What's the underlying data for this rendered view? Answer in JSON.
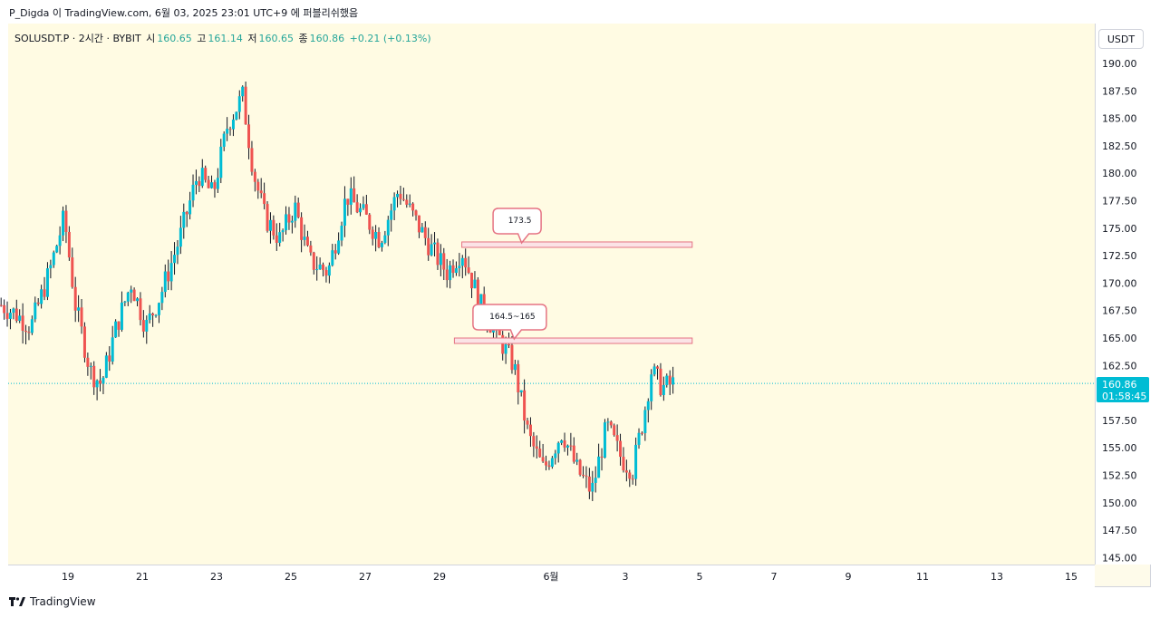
{
  "header": {
    "attribution": "P_Digda 이 TradingView.com, 6월 03, 2025 23:01 UTC+9 에 퍼블리쉬했음"
  },
  "legend": {
    "symbol": "SOLUSDT.P · 2시간 · BYBIT",
    "open_label": "시",
    "open": "160.65",
    "high_label": "고",
    "high": "161.14",
    "low_label": "저",
    "low": "160.65",
    "close_label": "종",
    "close": "160.86",
    "change": "+0.21 (+0.13%)"
  },
  "price_scale": {
    "currency": "USDT",
    "current_price": "160.86",
    "countdown": "01:58:45"
  },
  "footer": {
    "brand": "TradingView"
  },
  "colors": {
    "up": "#26a69a",
    "up_candle": "#00bcd4",
    "down": "#ef5350",
    "zone": "#e57383",
    "background": "#fffbe3"
  },
  "chart_data": {
    "type": "candlestick",
    "title": "SOLUSDT.P · 2시간 · BYBIT",
    "ylabel": "USDT",
    "ylim": [
      144,
      192
    ],
    "y_ticks": [
      "190.00",
      "187.50",
      "185.00",
      "182.50",
      "180.00",
      "177.50",
      "175.00",
      "172.50",
      "170.00",
      "167.50",
      "165.00",
      "162.50",
      "157.50",
      "155.00",
      "152.50",
      "150.00",
      "147.50",
      "145.00"
    ],
    "x_ticks": [
      "19",
      "21",
      "23",
      "25",
      "27",
      "29",
      "6월",
      "3",
      "5",
      "7",
      "9",
      "11",
      "13",
      "15"
    ],
    "x_tick_days": [
      19,
      21,
      23,
      25,
      27,
      29,
      32,
      34,
      36,
      38,
      40,
      42,
      44,
      46
    ],
    "x_range_days": [
      17.2,
      46.4
    ],
    "current_price": 160.86,
    "close_path": [
      {
        "day": 17.2,
        "price": 168.0
      },
      {
        "day": 17.6,
        "price": 167.2
      },
      {
        "day": 18.0,
        "price": 166.0
      },
      {
        "day": 18.5,
        "price": 171.0
      },
      {
        "day": 18.9,
        "price": 176.0
      },
      {
        "day": 19.2,
        "price": 168.0
      },
      {
        "day": 19.6,
        "price": 162.0
      },
      {
        "day": 19.9,
        "price": 160.8
      },
      {
        "day": 20.3,
        "price": 166.0
      },
      {
        "day": 20.7,
        "price": 170.0
      },
      {
        "day": 21.1,
        "price": 166.0
      },
      {
        "day": 21.5,
        "price": 169.0
      },
      {
        "day": 22.0,
        "price": 174.0
      },
      {
        "day": 22.5,
        "price": 180.0
      },
      {
        "day": 22.9,
        "price": 178.0
      },
      {
        "day": 23.3,
        "price": 184.5
      },
      {
        "day": 23.7,
        "price": 187.0
      },
      {
        "day": 24.0,
        "price": 180.0
      },
      {
        "day": 24.3,
        "price": 176.0
      },
      {
        "day": 24.7,
        "price": 174.0
      },
      {
        "day": 25.1,
        "price": 177.0
      },
      {
        "day": 25.5,
        "price": 172.0
      },
      {
        "day": 26.0,
        "price": 171.0
      },
      {
        "day": 26.5,
        "price": 178.0
      },
      {
        "day": 27.0,
        "price": 176.0
      },
      {
        "day": 27.4,
        "price": 174.0
      },
      {
        "day": 27.9,
        "price": 178.5
      },
      {
        "day": 28.3,
        "price": 176.0
      },
      {
        "day": 28.8,
        "price": 173.0
      },
      {
        "day": 29.2,
        "price": 171.0
      },
      {
        "day": 29.6,
        "price": 173.0
      },
      {
        "day": 30.1,
        "price": 168.0
      },
      {
        "day": 30.6,
        "price": 165.0
      },
      {
        "day": 31.0,
        "price": 162.5
      },
      {
        "day": 31.4,
        "price": 156.0
      },
      {
        "day": 31.8,
        "price": 153.0
      },
      {
        "day": 32.3,
        "price": 156.5
      },
      {
        "day": 32.7,
        "price": 153.0
      },
      {
        "day": 33.1,
        "price": 151.0
      },
      {
        "day": 33.5,
        "price": 157.0
      },
      {
        "day": 33.9,
        "price": 154.0
      },
      {
        "day": 34.2,
        "price": 153.0
      },
      {
        "day": 34.5,
        "price": 158.0
      },
      {
        "day": 34.7,
        "price": 162.0
      },
      {
        "day": 35.0,
        "price": 160.5
      },
      {
        "day": 35.3,
        "price": 160.86
      }
    ],
    "annotations": [
      {
        "label": "173.5",
        "price": 173.5,
        "day_start": 29.6,
        "day_end": 35.8
      },
      {
        "label": "164.5~165",
        "price": 164.75,
        "day_start": 29.4,
        "day_end": 35.8
      }
    ]
  }
}
